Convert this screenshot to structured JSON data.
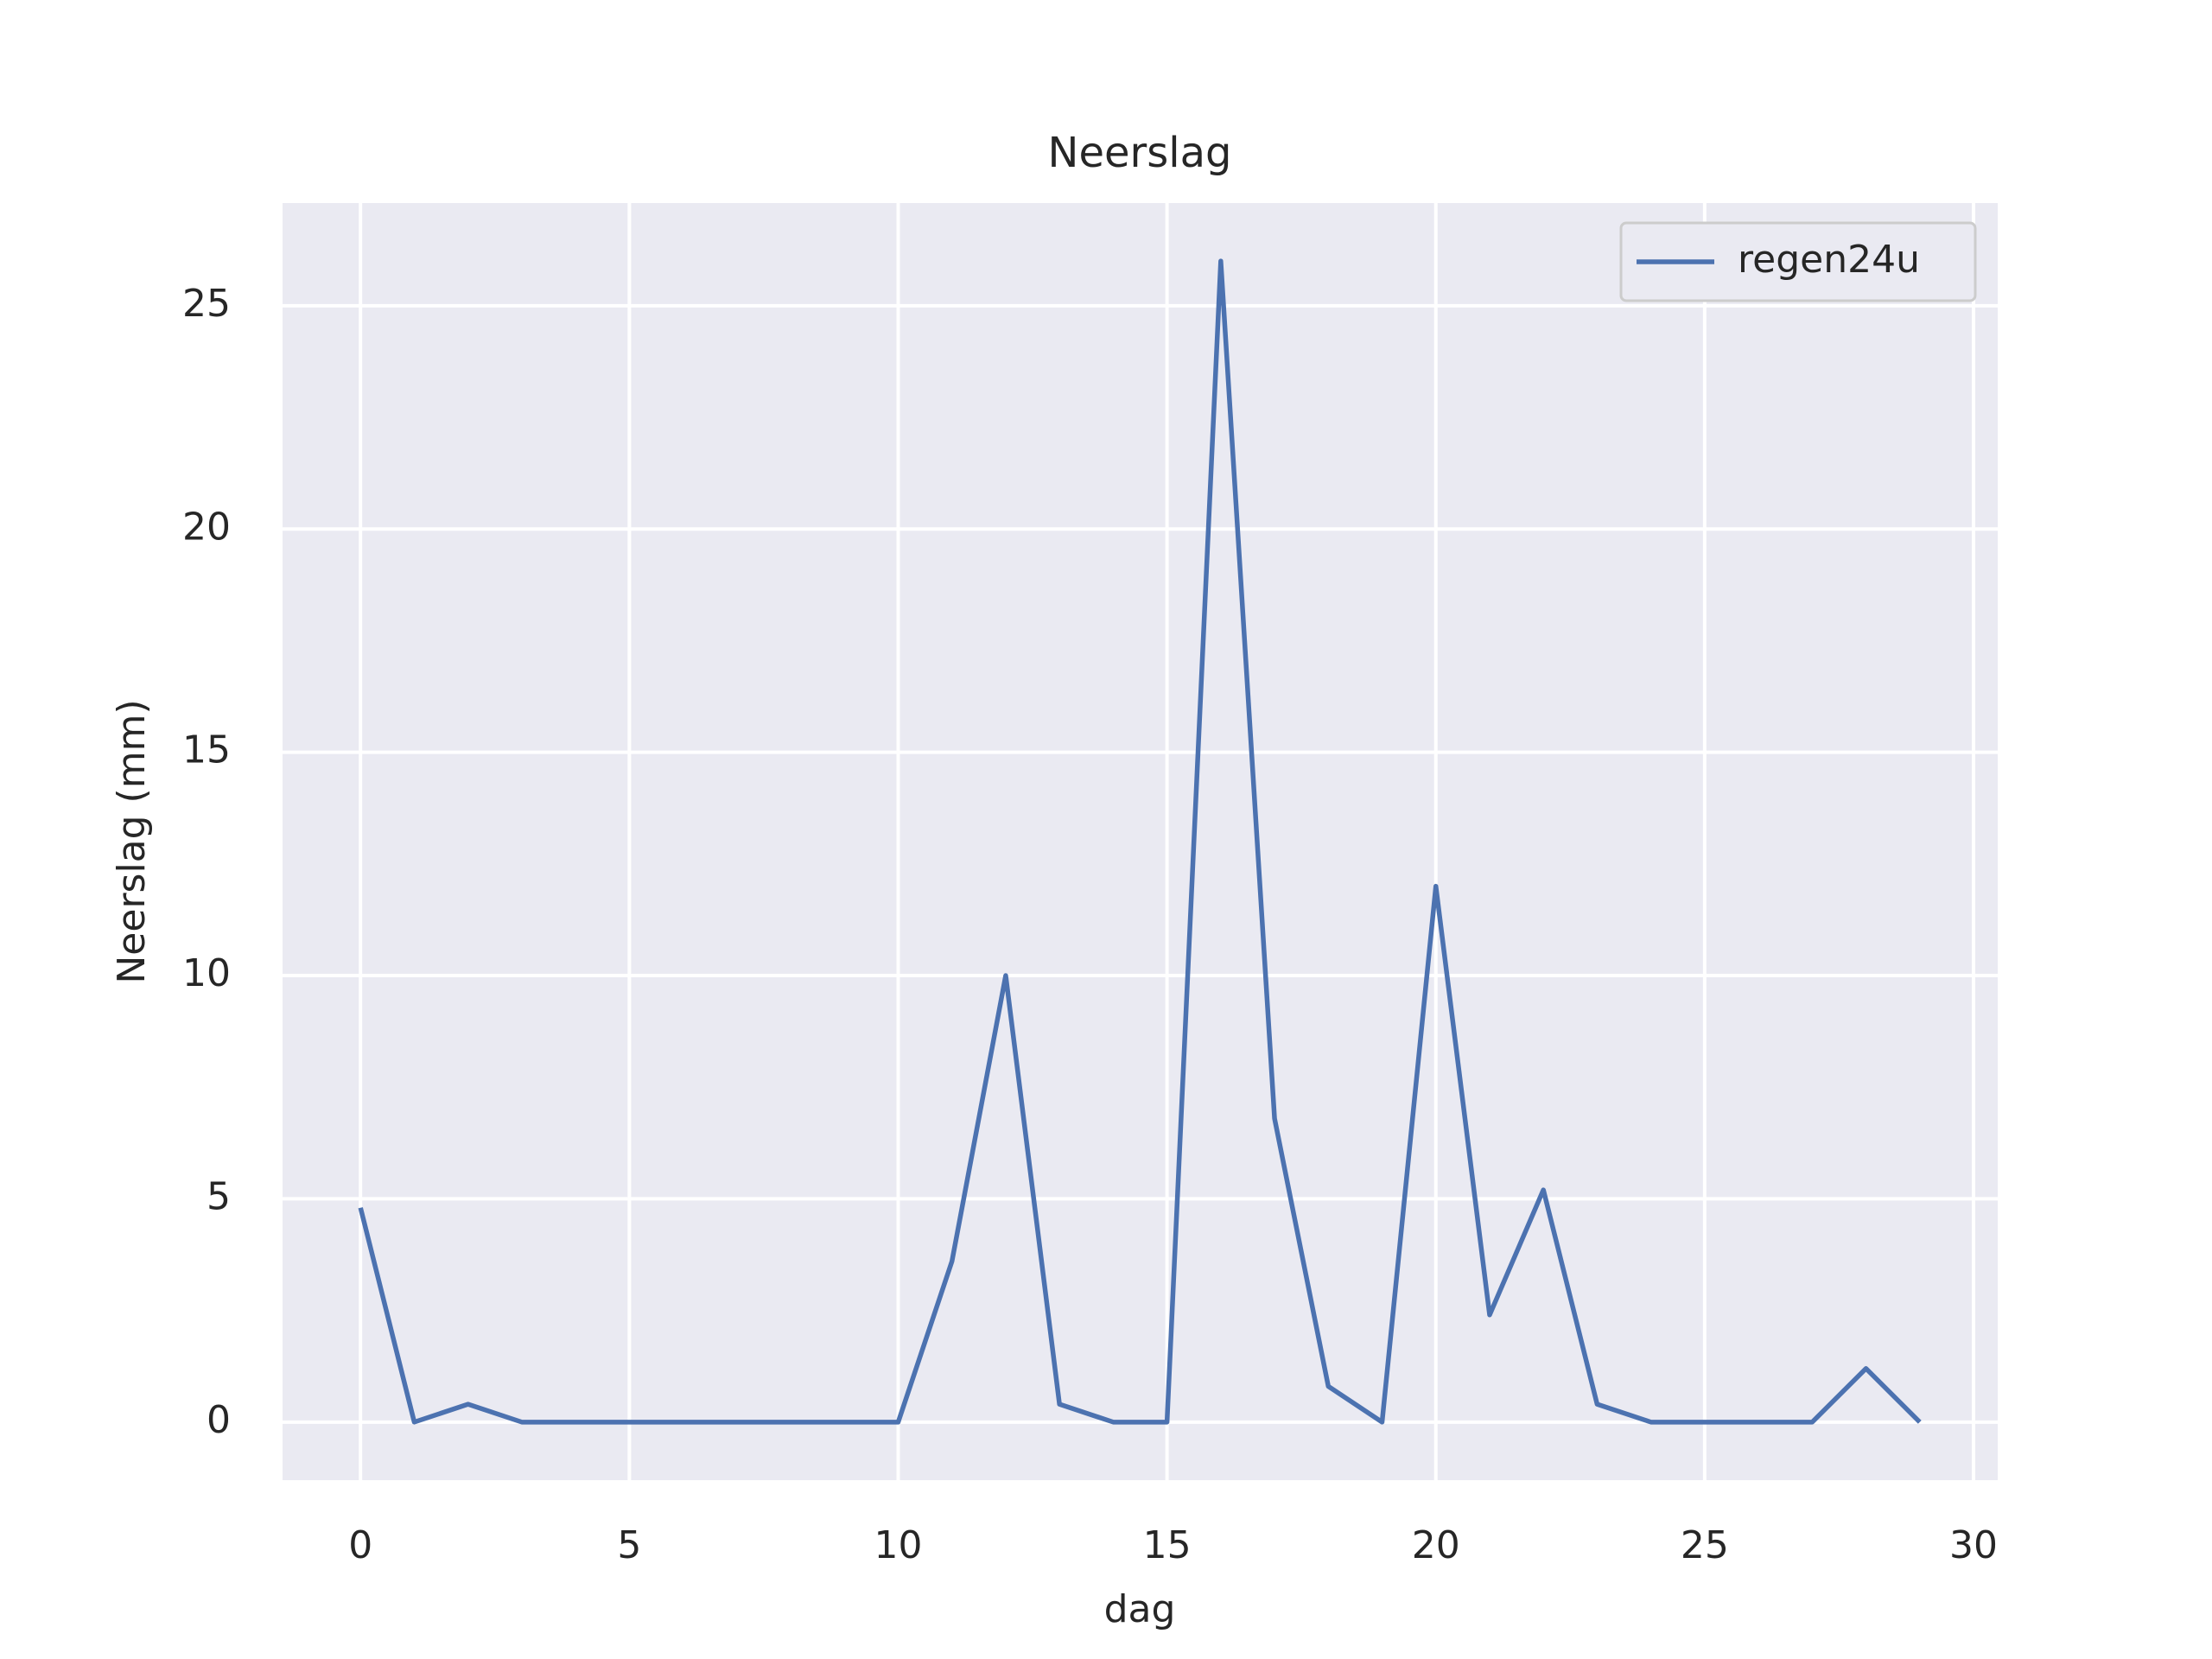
{
  "chart_data": {
    "type": "line",
    "title": "Neerslag",
    "xlabel": "dag",
    "ylabel": "Neerslag (mm)",
    "x": [
      0,
      1,
      2,
      3,
      4,
      5,
      6,
      7,
      8,
      9,
      10,
      11,
      12,
      13,
      14,
      15,
      16,
      17,
      18,
      19,
      20,
      21,
      22,
      23,
      24,
      25,
      26,
      27,
      28,
      29
    ],
    "series": [
      {
        "name": "regen24u",
        "color": "#4c72b0",
        "values": [
          4.8,
          0,
          0.4,
          0,
          0,
          0,
          0,
          0,
          0,
          0,
          0,
          3.6,
          10,
          0.4,
          0,
          0,
          26,
          6.8,
          0.8,
          0,
          12,
          2.4,
          5.2,
          0.4,
          0,
          0,
          0,
          0,
          1.2,
          0
        ]
      }
    ],
    "xlim": [
      -1.45,
      30.45
    ],
    "xticks": [
      0,
      5,
      10,
      15,
      20,
      25,
      30
    ],
    "ylim": [
      -1.3,
      27.3
    ],
    "yticks": [
      0,
      5,
      10,
      15,
      20,
      25
    ],
    "grid": true,
    "legend": "upper right"
  }
}
